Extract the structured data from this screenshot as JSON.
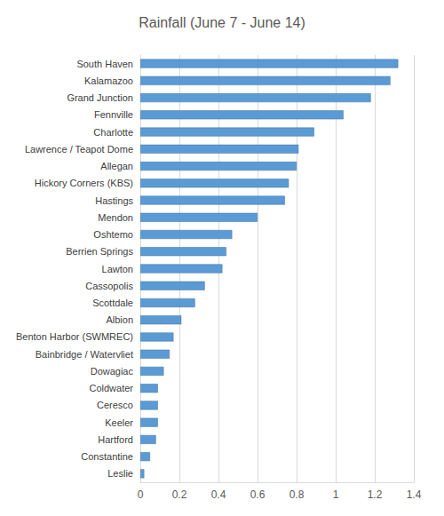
{
  "chart_data": {
    "type": "bar",
    "title": "Rainfall (June 7 - June 14)",
    "orientation": "horizontal",
    "categories": [
      "South Haven",
      "Kalamazoo",
      "Grand Junction",
      "Fennville",
      "Charlotte",
      "Lawrence / Teapot Dome",
      "Allegan",
      "Hickory Corners (KBS)",
      "Hastings",
      "Mendon",
      "Oshtemo",
      "Berrien Springs",
      "Lawton",
      "Cassopolis",
      "Scottdale",
      "Albion",
      "Benton Harbor (SWMREC)",
      "Bainbridge / Watervliet",
      "Dowagiac",
      "Coldwater",
      "Ceresco",
      "Keeler",
      "Hartford",
      "Constantine",
      "Leslie"
    ],
    "values": [
      1.32,
      1.28,
      1.18,
      1.04,
      0.89,
      0.81,
      0.8,
      0.76,
      0.74,
      0.6,
      0.47,
      0.44,
      0.42,
      0.33,
      0.28,
      0.21,
      0.17,
      0.15,
      0.12,
      0.09,
      0.09,
      0.09,
      0.08,
      0.05,
      0.02
    ],
    "color": "#5b9bd5",
    "xlim": [
      0,
      1.4
    ],
    "xticks": [
      0,
      0.2,
      0.4,
      0.6,
      0.8,
      1,
      1.2,
      1.4
    ],
    "grid": true
  }
}
